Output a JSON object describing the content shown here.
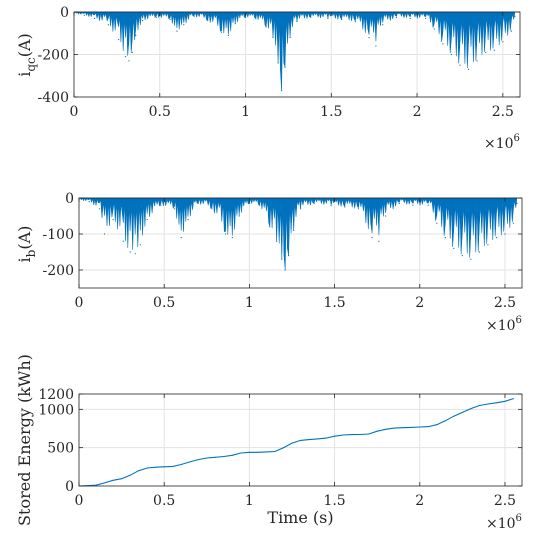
{
  "colors": {
    "series": "#0072BD",
    "axis": "#262626",
    "grid": "#e3e3e3",
    "background": "#ffffff"
  },
  "chart_data": [
    {
      "type": "area",
      "ylabel": "i",
      "ylabel_sub": "qc",
      "ylabel_unit": "(A)",
      "xlabel": "",
      "xlim": [
        0,
        2600000
      ],
      "ylim": [
        -400,
        0
      ],
      "x_ticks": [
        0,
        500000,
        1000000,
        1500000,
        2000000,
        2500000
      ],
      "x_tick_labels": [
        "0",
        "0.5",
        "1",
        "1.5",
        "2",
        "2.5"
      ],
      "y_ticks": [
        -400,
        -200,
        0
      ],
      "y_tick_labels": [
        "-400",
        "-200",
        "0"
      ],
      "x_multiplier_base": "×10",
      "x_multiplier_exp": "6",
      "grid": true,
      "series": [
        {
          "x": [
            0,
            60000,
            120000,
            200000,
            260000,
            300000,
            320000,
            340000,
            360000,
            400000,
            480000,
            560000,
            600000,
            640000,
            700000,
            780000,
            860000,
            900000,
            940000,
            1000000,
            1060000,
            1120000,
            1160000,
            1190000,
            1210000,
            1230000,
            1260000,
            1300000,
            1380000,
            1480000,
            1560000,
            1640000,
            1720000,
            1760000,
            1800000,
            1880000,
            1960000,
            2050000,
            2100000,
            2150000,
            2200000,
            2250000,
            2300000,
            2350000,
            2400000,
            2450000,
            2500000,
            2550000,
            2570000
          ],
          "y": [
            -5,
            -15,
            -30,
            -60,
            -130,
            -210,
            -230,
            -190,
            -110,
            -40,
            -25,
            -35,
            -90,
            -60,
            -20,
            -40,
            -95,
            -110,
            -55,
            -25,
            -30,
            -70,
            -120,
            -240,
            -370,
            -260,
            -120,
            -45,
            -25,
            -30,
            -35,
            -45,
            -120,
            -160,
            -60,
            -25,
            -30,
            -30,
            -80,
            -150,
            -200,
            -250,
            -270,
            -230,
            -190,
            -180,
            -140,
            -90,
            -20
          ]
        }
      ]
    },
    {
      "type": "area",
      "ylabel": "i",
      "ylabel_sub": "b",
      "ylabel_unit": "(A)",
      "xlabel": "",
      "xlim": [
        0,
        2600000
      ],
      "ylim": [
        -250,
        0
      ],
      "x_ticks": [
        0,
        500000,
        1000000,
        1500000,
        2000000,
        2500000
      ],
      "x_tick_labels": [
        "0",
        "0.5",
        "1",
        "1.5",
        "2",
        "2.5"
      ],
      "y_ticks": [
        -200,
        -100,
        0
      ],
      "y_tick_labels": [
        "-200",
        "-100",
        "0"
      ],
      "x_multiplier_base": "×10",
      "x_multiplier_exp": "6",
      "grid": true,
      "series": [
        {
          "x": [
            0,
            60000,
            120000,
            150000,
            200000,
            260000,
            300000,
            330000,
            360000,
            400000,
            480000,
            560000,
            600000,
            640000,
            700000,
            780000,
            860000,
            900000,
            940000,
            1000000,
            1060000,
            1120000,
            1160000,
            1190000,
            1210000,
            1230000,
            1260000,
            1300000,
            1380000,
            1480000,
            1560000,
            1640000,
            1720000,
            1760000,
            1800000,
            1880000,
            1960000,
            2050000,
            2100000,
            2150000,
            2200000,
            2250000,
            2300000,
            2350000,
            2400000,
            2450000,
            2500000,
            2550000,
            2570000
          ],
          "y": [
            -5,
            -10,
            -30,
            -100,
            -60,
            -120,
            -150,
            -155,
            -130,
            -60,
            -20,
            -30,
            -110,
            -60,
            -15,
            -30,
            -100,
            -110,
            -50,
            -15,
            -20,
            -80,
            -120,
            -170,
            -200,
            -160,
            -90,
            -30,
            -15,
            -20,
            -25,
            -30,
            -110,
            -120,
            -50,
            -15,
            -20,
            -20,
            -70,
            -110,
            -140,
            -160,
            -170,
            -150,
            -130,
            -110,
            -100,
            -70,
            -15
          ]
        }
      ]
    },
    {
      "type": "line",
      "ylabel": "Stored Energy (kWh)",
      "xlabel": "Time (s)",
      "xlim": [
        0,
        2600000
      ],
      "ylim": [
        0,
        1200
      ],
      "x_ticks": [
        0,
        500000,
        1000000,
        1500000,
        2000000,
        2500000
      ],
      "x_tick_labels": [
        "0",
        "0.5",
        "1",
        "1.5",
        "2",
        "2.5"
      ],
      "y_ticks": [
        0,
        500,
        1000,
        1200
      ],
      "y_tick_labels": [
        "0",
        "500",
        "1000",
        "1200"
      ],
      "x_multiplier_base": "×10",
      "x_multiplier_exp": "6",
      "grid": true,
      "series": [
        {
          "x": [
            0,
            100000,
            150000,
            200000,
            250000,
            300000,
            350000,
            400000,
            450000,
            500000,
            550000,
            600000,
            650000,
            700000,
            750000,
            800000,
            850000,
            900000,
            950000,
            1000000,
            1050000,
            1100000,
            1150000,
            1200000,
            1250000,
            1300000,
            1350000,
            1400000,
            1450000,
            1500000,
            1550000,
            1600000,
            1650000,
            1700000,
            1750000,
            1800000,
            1850000,
            1900000,
            1950000,
            2000000,
            2050000,
            2100000,
            2150000,
            2200000,
            2250000,
            2300000,
            2350000,
            2400000,
            2450000,
            2500000,
            2550000
          ],
          "y": [
            0,
            10,
            40,
            75,
            95,
            140,
            200,
            235,
            245,
            250,
            255,
            280,
            315,
            345,
            365,
            375,
            385,
            400,
            430,
            440,
            440,
            445,
            450,
            500,
            560,
            595,
            605,
            615,
            625,
            650,
            665,
            670,
            672,
            678,
            715,
            740,
            755,
            760,
            765,
            770,
            775,
            800,
            850,
            910,
            960,
            1010,
            1050,
            1070,
            1085,
            1105,
            1140
          ]
        }
      ]
    }
  ]
}
